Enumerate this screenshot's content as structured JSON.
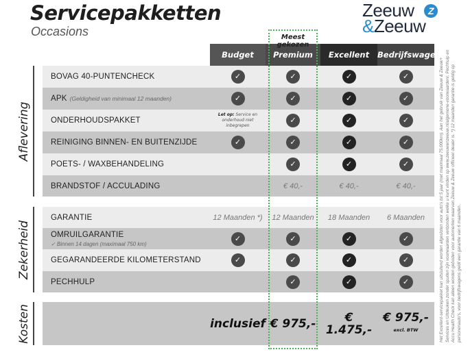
{
  "header": {
    "title": "Servicepakketten",
    "subtitle": "Occasions",
    "logo": {
      "line1": "Zeeuw",
      "line2": "Zeeuw",
      "amp": "&",
      "mark": "Z"
    }
  },
  "popular_label": "Meest gekozen",
  "columns": [
    {
      "label": "Budget",
      "color": "#555555"
    },
    {
      "label": "Premium",
      "color": "#4a4a4a"
    },
    {
      "label": "Excellent",
      "color": "#2a2a2a"
    },
    {
      "label": "Bedrijfswagens",
      "color": "#444444"
    }
  ],
  "sections": [
    {
      "label": "Aflevering",
      "rows": [
        {
          "label": "BOVAG 40-PUNTENCHECK",
          "cells": [
            "check",
            "check",
            "check",
            "check"
          ]
        },
        {
          "label": "APK",
          "note": "(Geldigheid van minimaal 12 maanden)",
          "cells": [
            "check",
            "check",
            "check",
            "check"
          ]
        },
        {
          "label": "ONDERHOUDSPAKKET",
          "cells": [
            "note",
            "check",
            "check",
            "check"
          ],
          "budget_note": {
            "bold": "Let op:",
            "text": "Service en onderhoud niet inbegrepen"
          }
        },
        {
          "label": "REINIGING BINNEN- EN BUITENZIJDE",
          "cells": [
            "check",
            "check",
            "check",
            "check"
          ]
        },
        {
          "label": "POETS- / WAXBEHANDELING",
          "cells": [
            "",
            "check",
            "check",
            "check"
          ]
        },
        {
          "label": "BRANDSTOF / ACCULADING",
          "cells": [
            "",
            "€ 40,-",
            "€ 40,-",
            "€ 40,-"
          ]
        }
      ]
    },
    {
      "label": "Zekerheid",
      "rows": [
        {
          "label": "GARANTIE",
          "cells": [
            "12 Maanden *)",
            "12 Maanden",
            "18 Maanden",
            "6 Maanden"
          ]
        },
        {
          "label": "OMRUILGARANTIE",
          "sub": "✓  Binnen 14 dagen (maximaal 750 km)",
          "cells": [
            "check",
            "check",
            "check",
            "check"
          ]
        },
        {
          "label": "GEGARANDEERDE KILOMETERSTAND",
          "cells": [
            "check",
            "check",
            "check",
            "check"
          ]
        },
        {
          "label": "PECHHULP",
          "cells": [
            "",
            "check",
            "check",
            "check"
          ]
        }
      ]
    },
    {
      "label": "Kosten",
      "rows": [
        {
          "label": "",
          "price": true,
          "cells": [
            "inclusief",
            "€ 975,-",
            "€ 1.475,-",
            "€ 975,-"
          ],
          "last_sub": "excl. BTW"
        }
      ]
    }
  ],
  "footnote": "Het Excellent-servicepakket kan uitsluitend worden afgesloten voor auto's tot 5 jaar (met maximaal 75.000km). Aan het gebruik van Zeeuw & Zeeuw+ Services en Uitdeuken zonder spuiten zijn voorwaarden verbonden welke u kunt vinden op www.zeeuwenzeeuw.nl/algemene-voorwaarden/. Pechhulp en Accu Health Check kan alleen worden geboden voor automerken waarvan Zeeuw & Zeeuw officieel dealer is. *) 12 maanden garantie is geldig op personenauto's, voor bedrijfswagens geldt een garantie van 6 maanden."
}
